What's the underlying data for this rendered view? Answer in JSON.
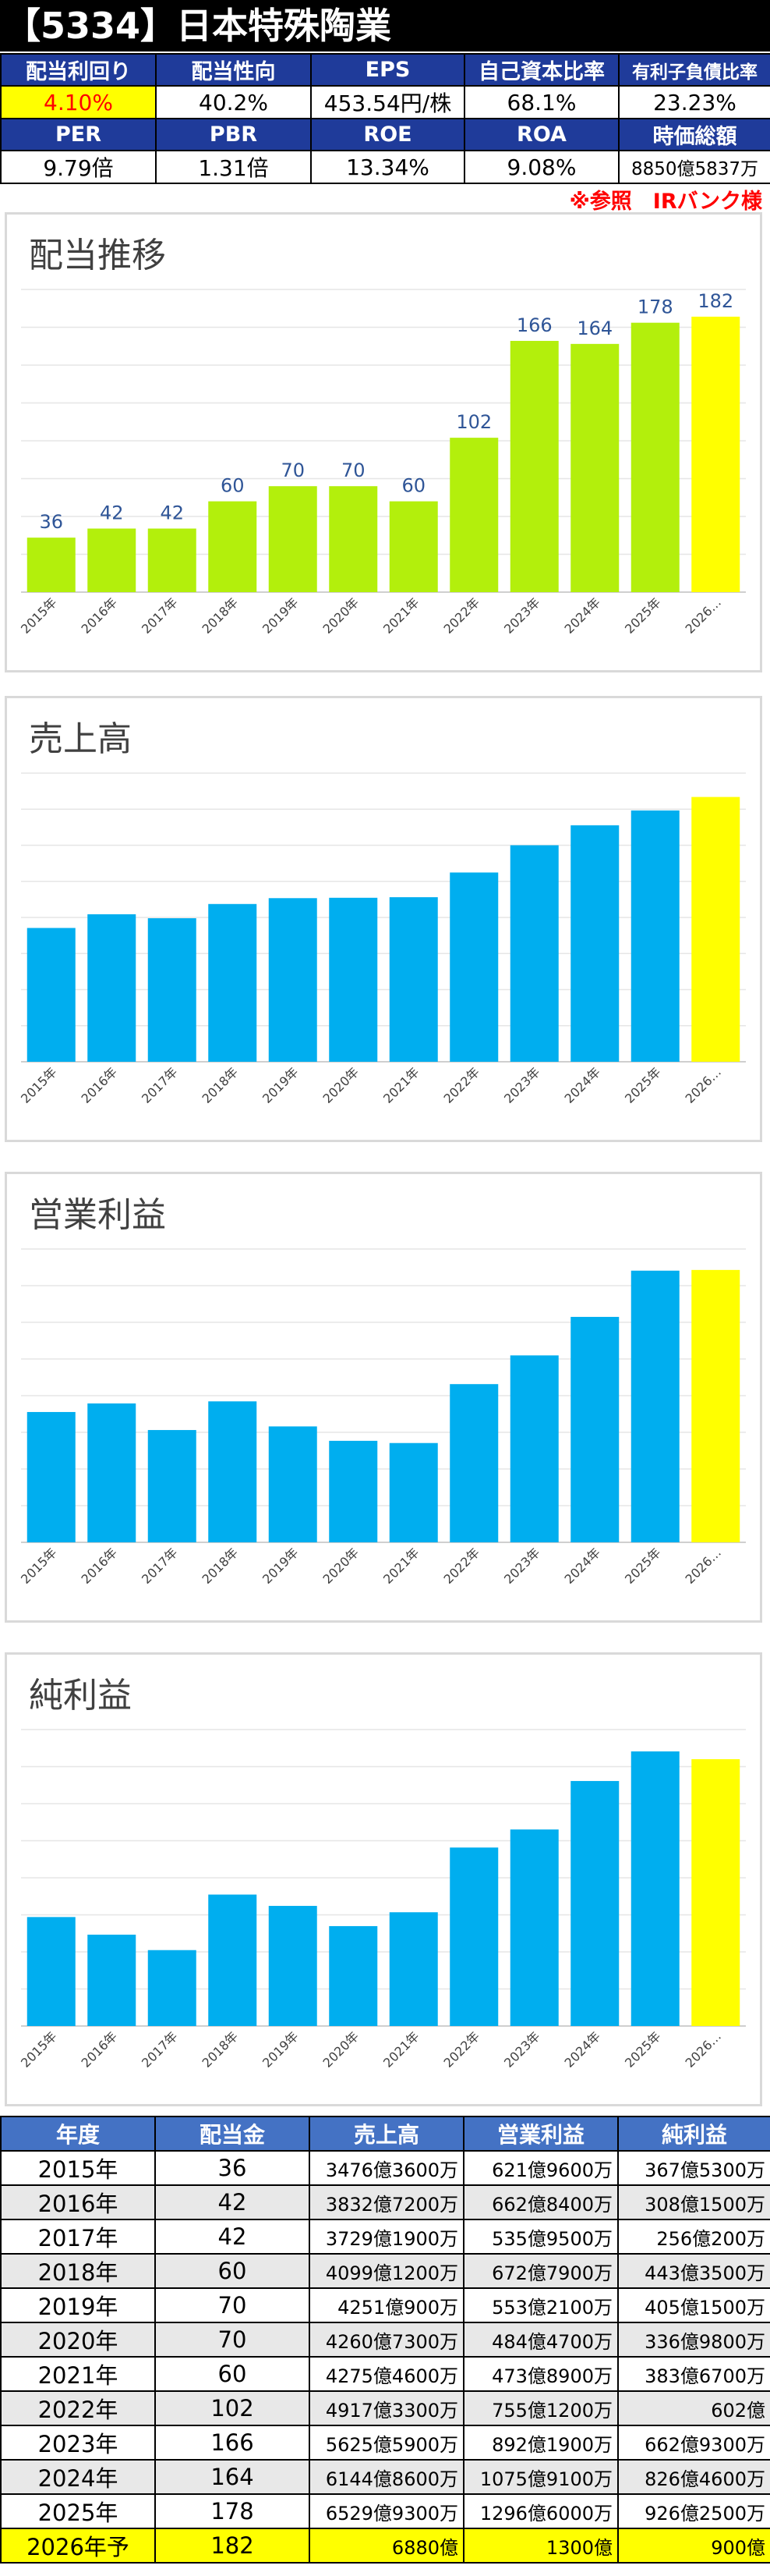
{
  "header": {
    "title": "【5334】日本特殊陶業"
  },
  "metrics": {
    "row1_labels": [
      "配当利回り",
      "配当性向",
      "EPS",
      "自己資本比率",
      "有利子負債比率"
    ],
    "row1_values": [
      "4.10%",
      "40.2%",
      "453.54円/株",
      "68.1%",
      "23.23%"
    ],
    "row2_labels": [
      "PER",
      "PBR",
      "ROE",
      "ROA",
      "時価総額"
    ],
    "row2_values": [
      "9.79倍",
      "1.31倍",
      "13.34%",
      "9.08%",
      "8850億5837万"
    ]
  },
  "note": "※参照　IRバンク様",
  "colors": {
    "header_bg": "#000000",
    "label_bg": "#1f3b9a",
    "highlight": "#ffff00",
    "dividend_bar": "#b3ef0c",
    "blue_bar": "#00aeef",
    "forecast_bar": "#ffff00",
    "table_header": "#4472c4"
  },
  "chart_data": [
    {
      "type": "bar",
      "title": "配当推移",
      "categories": [
        "2015年",
        "2016年",
        "2017年",
        "2018年",
        "2019年",
        "2020年",
        "2021年",
        "2022年",
        "2023年",
        "2024年",
        "2025年",
        "2026年予"
      ],
      "tick_labels": [
        "2015年",
        "2016年",
        "2017年",
        "2018年",
        "2019年",
        "2020年",
        "2021年",
        "2022年",
        "2023年",
        "2024年",
        "2025年",
        "2026…"
      ],
      "values": [
        36,
        42,
        42,
        60,
        70,
        70,
        60,
        102,
        166,
        164,
        178,
        182
      ],
      "data_labels": [
        "36",
        "42",
        "42",
        "60",
        "70",
        "70",
        "60",
        "102",
        "166",
        "164",
        "178",
        "182"
      ],
      "unit": "円",
      "ylim": [
        0,
        200
      ],
      "grid": true,
      "legend": "none"
    },
    {
      "type": "bar",
      "title": "売上高",
      "categories": [
        "2015年",
        "2016年",
        "2017年",
        "2018年",
        "2019年",
        "2020年",
        "2021年",
        "2022年",
        "2023年",
        "2024年",
        "2025年",
        "2026年予"
      ],
      "tick_labels": [
        "2015年",
        "2016年",
        "2017年",
        "2018年",
        "2019年",
        "2020年",
        "2021年",
        "2022年",
        "2023年",
        "2024年",
        "2025年",
        "2026…"
      ],
      "values": [
        3476.36,
        3832.72,
        3729.19,
        4099.12,
        4251.09,
        4260.73,
        4275.46,
        4917.33,
        5625.59,
        6144.86,
        6529.93,
        6880
      ],
      "unit": "億円",
      "ylim": [
        0,
        7500
      ],
      "grid": true,
      "legend": "none"
    },
    {
      "type": "bar",
      "title": "営業利益",
      "categories": [
        "2015年",
        "2016年",
        "2017年",
        "2018年",
        "2019年",
        "2020年",
        "2021年",
        "2022年",
        "2023年",
        "2024年",
        "2025年",
        "2026年予"
      ],
      "tick_labels": [
        "2015年",
        "2016年",
        "2017年",
        "2018年",
        "2019年",
        "2020年",
        "2021年",
        "2022年",
        "2023年",
        "2024年",
        "2025年",
        "2026…"
      ],
      "values": [
        621.96,
        662.84,
        535.95,
        672.79,
        553.21,
        484.47,
        473.89,
        755.12,
        892.19,
        1075.91,
        1296.6,
        1300
      ],
      "unit": "億円",
      "ylim": [
        0,
        1400
      ],
      "grid": true,
      "legend": "none"
    },
    {
      "type": "bar",
      "title": "純利益",
      "categories": [
        "2015年",
        "2016年",
        "2017年",
        "2018年",
        "2019年",
        "2020年",
        "2021年",
        "2022年",
        "2023年",
        "2024年",
        "2025年",
        "2026年予"
      ],
      "tick_labels": [
        "2015年",
        "2016年",
        "2017年",
        "2018年",
        "2019年",
        "2020年",
        "2021年",
        "2022年",
        "2023年",
        "2024年",
        "2025年",
        "2026…"
      ],
      "values": [
        367.53,
        308.15,
        256.02,
        443.35,
        405.15,
        336.98,
        383.67,
        602,
        662.93,
        826.46,
        926.25,
        900
      ],
      "unit": "億円",
      "ylim": [
        0,
        1000
      ],
      "grid": true,
      "legend": "none"
    }
  ],
  "table": {
    "headers": [
      "年度",
      "配当金",
      "売上高",
      "営業利益",
      "純利益"
    ],
    "rows": [
      [
        "2015年",
        "36",
        "3476億3600万",
        "621億9600万",
        "367億5300万"
      ],
      [
        "2016年",
        "42",
        "3832億7200万",
        "662億8400万",
        "308億1500万"
      ],
      [
        "2017年",
        "42",
        "3729億1900万",
        "535億9500万",
        "256億200万"
      ],
      [
        "2018年",
        "60",
        "4099億1200万",
        "672億7900万",
        "443億3500万"
      ],
      [
        "2019年",
        "70",
        "4251億900万",
        "553億2100万",
        "405億1500万"
      ],
      [
        "2020年",
        "70",
        "4260億7300万",
        "484億4700万",
        "336億9800万"
      ],
      [
        "2021年",
        "60",
        "4275億4600万",
        "473億8900万",
        "383億6700万"
      ],
      [
        "2022年",
        "102",
        "4917億3300万",
        "755億1200万",
        "602億"
      ],
      [
        "2023年",
        "166",
        "5625億5900万",
        "892億1900万",
        "662億9300万"
      ],
      [
        "2024年",
        "164",
        "6144億8600万",
        "1075億9100万",
        "826億4600万"
      ],
      [
        "2025年",
        "178",
        "6529億9300万",
        "1296億6000万",
        "926億2500万"
      ],
      [
        "2026年予",
        "182",
        "6880億",
        "1300億",
        "900億"
      ]
    ]
  }
}
